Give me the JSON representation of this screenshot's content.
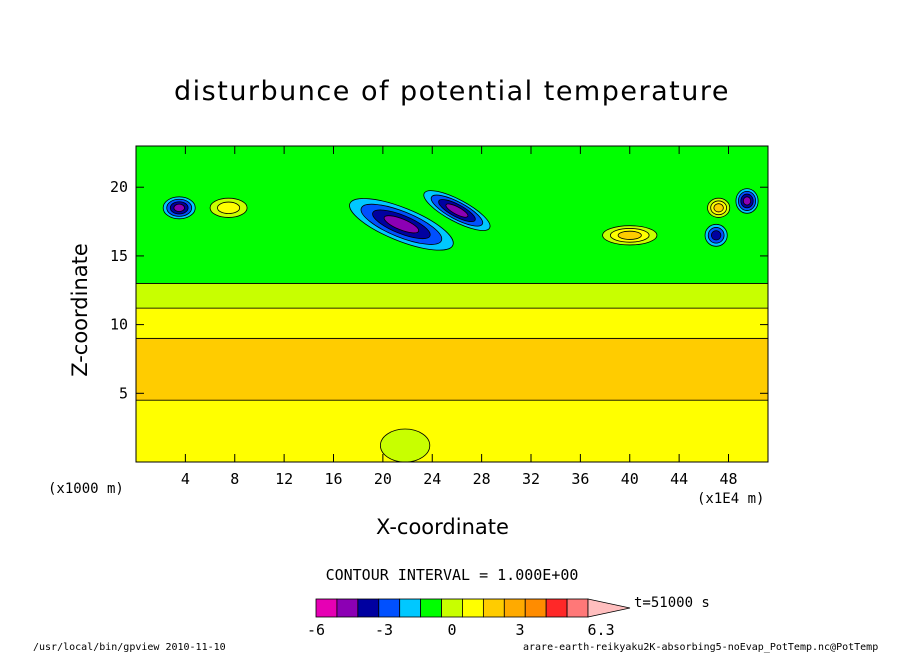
{
  "chart_data": {
    "type": "heatmap",
    "title": "disturbunce of potential temperature",
    "xlabel": "X-coordinate",
    "ylabel": "Z-coordinate",
    "x_unit_label": "(x1E4 m)",
    "z_unit_label": "(x1000 m)",
    "x_ticks": [
      4,
      8,
      12,
      16,
      20,
      24,
      28,
      32,
      36,
      40,
      44,
      48
    ],
    "z_ticks": [
      5,
      10,
      15,
      20
    ],
    "xlim": [
      0,
      51.2
    ],
    "zlim": [
      0,
      23
    ],
    "contour_interval_label": "CONTOUR INTERVAL = 1.000E+00",
    "time_label": "t=51000 s",
    "colorbar": {
      "levels": [
        -6,
        -5,
        -4,
        -3,
        -2,
        -1,
        0,
        1,
        2,
        3,
        4,
        5,
        6,
        6.3
      ],
      "colors": [
        "#e600b4",
        "#8c00b4",
        "#0000a0",
        "#0050ff",
        "#00c8ff",
        "#00ff00",
        "#c8ff00",
        "#ffff00",
        "#ffcc00",
        "#ffaa00",
        "#ff8c00",
        "#ff2828",
        "#ff7878",
        "#ffbebe"
      ],
      "tick_labels": [
        "-6",
        "-3",
        "0",
        "3",
        "6.3"
      ],
      "tick_values": [
        -6,
        -3,
        0,
        3,
        6.3
      ]
    },
    "bands": [
      {
        "z_from": 0.0,
        "z_to": 4.5,
        "value": 1.5
      },
      {
        "z_from": 4.5,
        "z_to": 9.0,
        "value": 2.5
      },
      {
        "z_from": 9.0,
        "z_to": 11.2,
        "value": 1.5
      },
      {
        "z_from": 11.2,
        "z_to": 13.0,
        "value": 0.5
      },
      {
        "z_from": 13.0,
        "z_to": 23.0,
        "value": -0.5
      }
    ],
    "features": [
      {
        "x": 21.5,
        "z": 17.3,
        "rx": 4.5,
        "rz": 1.2,
        "value": -4,
        "angle": 22
      },
      {
        "x": 26.0,
        "z": 18.3,
        "rx": 3.0,
        "rz": 0.8,
        "value": -4,
        "angle": 28
      },
      {
        "x": 3.5,
        "z": 18.5,
        "rx": 1.3,
        "rz": 0.8,
        "value": -4,
        "angle": 0
      },
      {
        "x": 49.5,
        "z": 19.0,
        "rx": 0.9,
        "rz": 0.9,
        "value": -4,
        "angle": 0
      },
      {
        "x": 47.0,
        "z": 16.5,
        "rx": 0.9,
        "rz": 0.8,
        "value": -3,
        "angle": 0
      },
      {
        "x": 40.0,
        "z": 16.5,
        "rx": 2.2,
        "rz": 0.7,
        "value": 2.5,
        "angle": 0
      },
      {
        "x": 47.2,
        "z": 18.5,
        "rx": 0.9,
        "rz": 0.7,
        "value": 2.5,
        "angle": 0
      },
      {
        "x": 7.5,
        "z": 18.5,
        "rx": 1.5,
        "rz": 0.7,
        "value": 1.5,
        "angle": 0
      },
      {
        "x": 21.8,
        "z": 1.2,
        "rx": 2.0,
        "rz": 1.2,
        "value": 0.5,
        "angle": 0
      }
    ]
  },
  "footer": {
    "left": "/usr/local/bin/gpview  2010-11-10",
    "right": "arare-earth-reikyaku2K-absorbing5-noEvap_PotTemp.nc@PotTemp"
  }
}
